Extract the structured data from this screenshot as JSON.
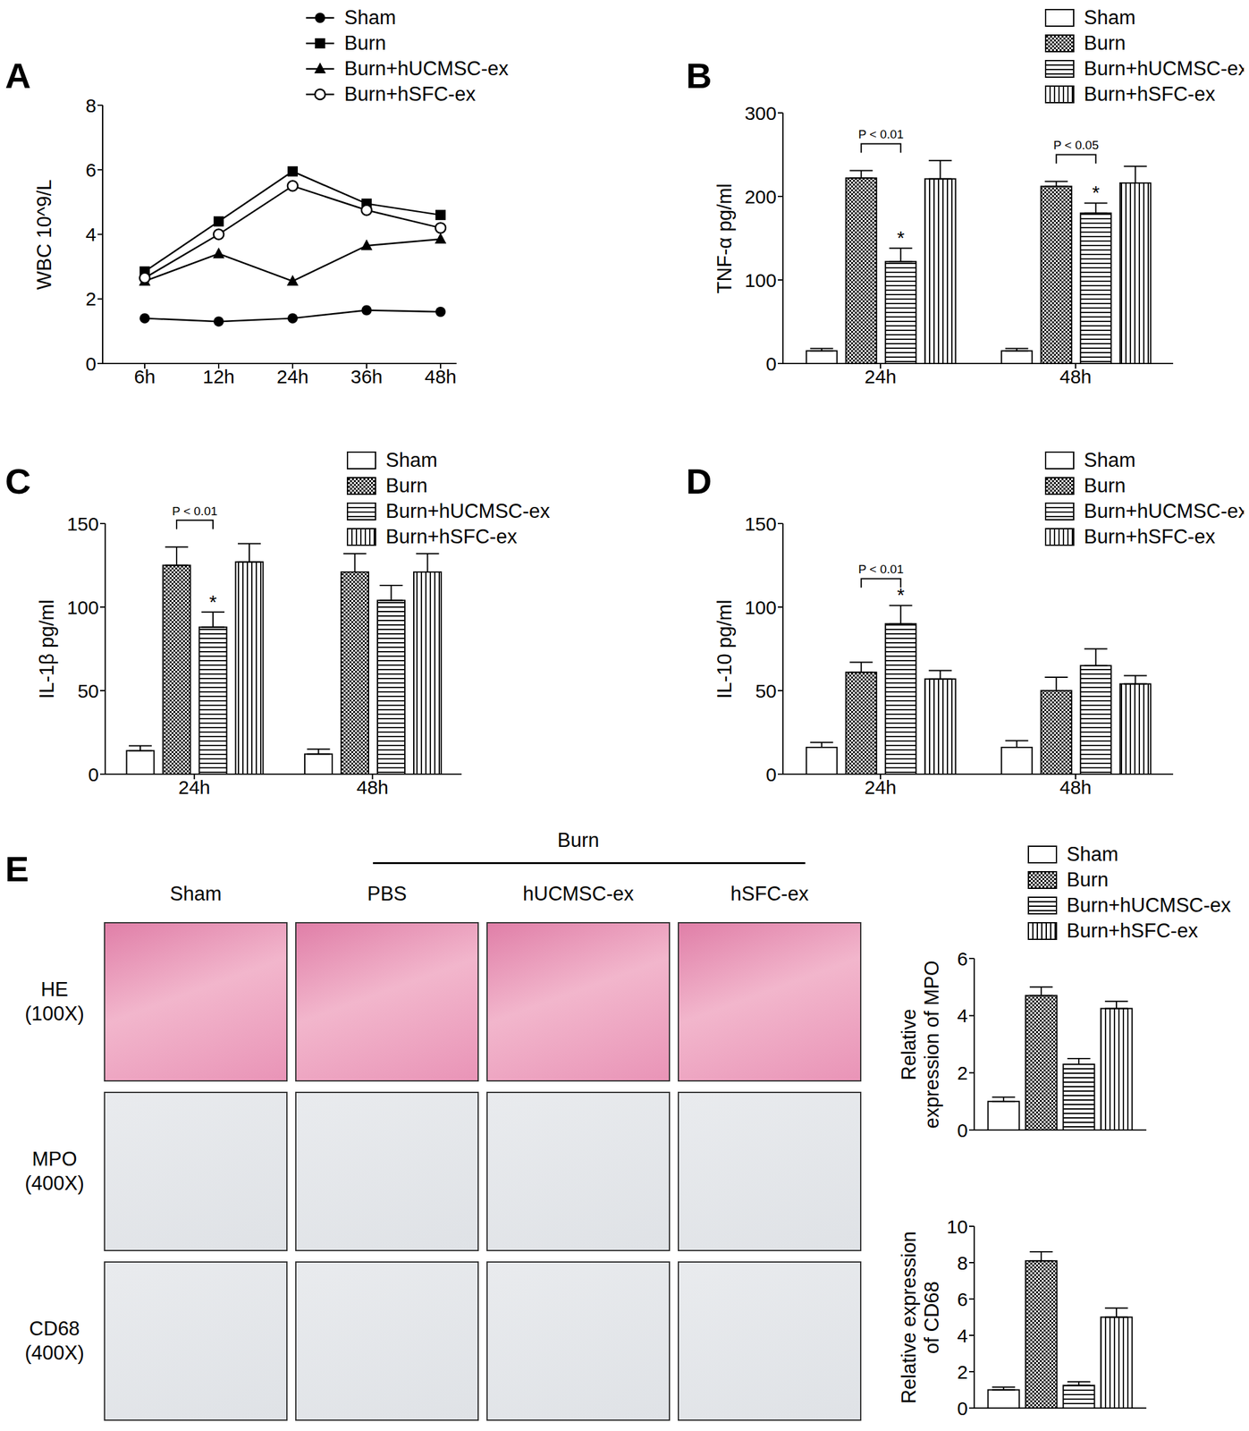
{
  "chart_data": [
    {
      "panel": "A",
      "type": "line",
      "categories": [
        "6h",
        "12h",
        "24h",
        "36h",
        "48h"
      ],
      "ylabel": "WBC 10^9/L",
      "ylim": [
        0,
        8
      ],
      "yticks": [
        0,
        2,
        4,
        6,
        8
      ],
      "legend": "top",
      "series": [
        {
          "name": "Sham",
          "color": "#000000",
          "marker": "circle",
          "values": [
            1.4,
            1.3,
            1.4,
            1.65,
            1.6
          ]
        },
        {
          "name": "Burn",
          "color": "#000000",
          "marker": "square",
          "values": [
            2.85,
            4.4,
            5.95,
            4.95,
            4.6
          ]
        },
        {
          "name": "Burn+hUCMSC-ex",
          "color": "#000000",
          "marker": "triangle",
          "values": [
            2.55,
            3.4,
            2.55,
            3.65,
            3.85
          ]
        },
        {
          "name": "Burn+hSFC-ex",
          "color": "#000000",
          "marker": "open_circle",
          "values": [
            2.65,
            4.0,
            5.5,
            4.75,
            4.2
          ]
        }
      ]
    },
    {
      "panel": "B",
      "type": "bar",
      "categories": [
        "24h",
        "48h"
      ],
      "ylabel": "TNF-α pg/ml",
      "ylim": [
        0,
        300
      ],
      "yticks": [
        0,
        100,
        200,
        300
      ],
      "legend": "top",
      "series": [
        {
          "name": "Sham",
          "color": "#ffffff",
          "values": [
            15,
            15
          ],
          "errors": [
            3,
            3
          ]
        },
        {
          "name": "Burn",
          "color": "#000000",
          "values": [
            222,
            212
          ],
          "errors": [
            9,
            6
          ]
        },
        {
          "name": "Burn+hUCMSC-ex",
          "color": "#000000",
          "values": [
            122,
            180
          ],
          "errors": [
            16,
            12
          ]
        },
        {
          "name": "Burn+hSFC-ex",
          "color": "#000000",
          "values": [
            221,
            216
          ],
          "errors": [
            22,
            20
          ]
        }
      ],
      "annotations": [
        {
          "category": "24h",
          "from": "Burn",
          "to": "Burn+hUCMSC-ex",
          "text": "P < 0.01"
        },
        {
          "category": "24h",
          "series": "Burn+hUCMSC-ex",
          "text": "*"
        },
        {
          "category": "48h",
          "from": "Burn",
          "to": "Burn+hUCMSC-ex",
          "text": "P < 0.05"
        },
        {
          "category": "48h",
          "series": "Burn+hUCMSC-ex",
          "text": "*"
        }
      ]
    },
    {
      "panel": "C",
      "type": "bar",
      "categories": [
        "24h",
        "48h"
      ],
      "ylabel": "IL-1β pg/ml",
      "ylim": [
        0,
        150
      ],
      "yticks": [
        0,
        50,
        100,
        150
      ],
      "legend": "top",
      "series": [
        {
          "name": "Sham",
          "color": "#ffffff",
          "values": [
            14,
            12
          ],
          "errors": [
            3,
            3
          ]
        },
        {
          "name": "Burn",
          "color": "#000000",
          "values": [
            125,
            121
          ],
          "errors": [
            11,
            11
          ]
        },
        {
          "name": "Burn+hUCMSC-ex",
          "color": "#000000",
          "values": [
            88,
            104
          ],
          "errors": [
            9,
            9
          ]
        },
        {
          "name": "Burn+hSFC-ex",
          "color": "#000000",
          "values": [
            127,
            121
          ],
          "errors": [
            11,
            11
          ]
        }
      ],
      "annotations": [
        {
          "category": "24h",
          "from": "Burn",
          "to": "Burn+hUCMSC-ex",
          "text": "P < 0.01"
        },
        {
          "category": "24h",
          "series": "Burn+hUCMSC-ex",
          "text": "*"
        }
      ]
    },
    {
      "panel": "D",
      "type": "bar",
      "categories": [
        "24h",
        "48h"
      ],
      "ylabel": "IL-10 pg/ml",
      "ylim": [
        0,
        150
      ],
      "yticks": [
        0,
        50,
        100,
        150
      ],
      "legend": "top",
      "series": [
        {
          "name": "Sham",
          "color": "#ffffff",
          "values": [
            16,
            16
          ],
          "errors": [
            3,
            4
          ]
        },
        {
          "name": "Burn",
          "color": "#000000",
          "values": [
            61,
            50
          ],
          "errors": [
            6,
            8
          ]
        },
        {
          "name": "Burn+hUCMSC-ex",
          "color": "#000000",
          "values": [
            90,
            65
          ],
          "errors": [
            11,
            10
          ]
        },
        {
          "name": "Burn+hSFC-ex",
          "color": "#000000",
          "values": [
            57,
            54
          ],
          "errors": [
            5,
            5
          ]
        }
      ],
      "annotations": [
        {
          "category": "24h",
          "from": "Burn",
          "to": "Burn+hUCMSC-ex",
          "text": "P < 0.01"
        },
        {
          "category": "24h",
          "series": "Burn+hUCMSC-ex",
          "text": "*"
        }
      ]
    },
    {
      "panel": "E",
      "type": "bar",
      "categories": [
        null
      ],
      "tick_labels": "y",
      "ylabel": "Relative expression of MPO",
      "ylim": [
        0,
        6
      ],
      "yticks": [
        0,
        2,
        4,
        6
      ],
      "legend": "top",
      "series": [
        {
          "name": "Sham",
          "color": "#ffffff",
          "values": [
            1.0
          ],
          "errors": [
            0.15
          ]
        },
        {
          "name": "Burn",
          "color": "#000000",
          "values": [
            4.7
          ],
          "errors": [
            0.3
          ]
        },
        {
          "name": "Burn+hUCMSC-ex",
          "color": "#000000",
          "values": [
            2.3
          ],
          "errors": [
            0.2
          ]
        },
        {
          "name": "Burn+hSFC-ex",
          "color": "#000000",
          "values": [
            4.25
          ],
          "errors": [
            0.25
          ]
        }
      ]
    },
    {
      "type": "bar",
      "categories": [
        null
      ],
      "tick_labels": "y",
      "ylabel": "Relative expression of CD68",
      "ylim": [
        0,
        10
      ],
      "yticks": [
        0,
        2,
        4,
        6,
        8,
        10
      ],
      "series": [
        {
          "name": "Sham",
          "color": "#ffffff",
          "values": [
            1.0
          ],
          "errors": [
            0.15
          ]
        },
        {
          "name": "Burn",
          "color": "#000000",
          "values": [
            8.1
          ],
          "errors": [
            0.5
          ]
        },
        {
          "name": "Burn+hUCMSC-ex",
          "color": "#000000",
          "values": [
            1.25
          ],
          "errors": [
            0.2
          ]
        },
        {
          "name": "Burn+hSFC-ex",
          "color": "#000000",
          "values": [
            5.0
          ],
          "errors": [
            0.5
          ]
        }
      ]
    }
  ],
  "histology": {
    "group_label": "Burn",
    "columns": [
      "Sham",
      "PBS",
      "hUCMSC-ex",
      "hSFC-ex"
    ],
    "rows": [
      [
        "HE",
        "(100X)"
      ],
      [
        "MPO",
        "(400X)"
      ],
      [
        "CD68",
        "(400X)"
      ]
    ]
  }
}
